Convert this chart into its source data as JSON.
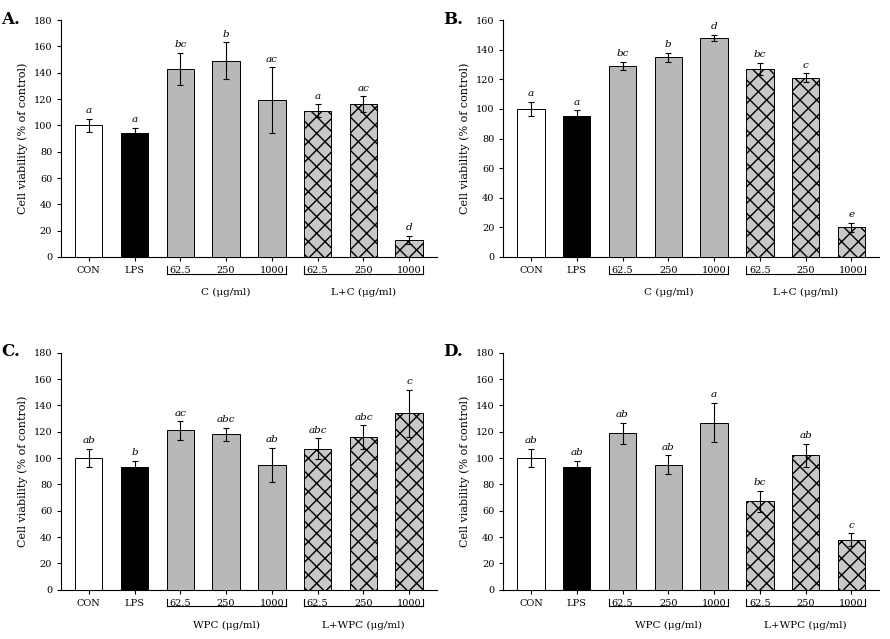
{
  "panels": [
    {
      "label": "A.",
      "ylabel": "Cell viability (% of control)",
      "ylim": [
        0,
        180
      ],
      "yticks": [
        0,
        20,
        40,
        60,
        80,
        100,
        120,
        140,
        160,
        180
      ],
      "xtick_labels": [
        "CON",
        "LPS",
        "62.5",
        "250",
        "1000",
        "62.5",
        "250",
        "1000"
      ],
      "group_labels": [
        "C (μg/ml)",
        "L+C (μg/ml)"
      ],
      "group_label_xranges": [
        [
          2,
          4
        ],
        [
          5,
          7
        ]
      ],
      "bar_values": [
        100,
        94,
        143,
        149,
        119,
        111,
        116,
        13
      ],
      "bar_errors": [
        5,
        4,
        12,
        14,
        25,
        5,
        6,
        3
      ],
      "bar_colors": [
        "white",
        "black",
        "gray",
        "gray",
        "gray",
        "hatch",
        "hatch",
        "hatch"
      ],
      "sig_labels": [
        "a",
        "a",
        "bc",
        "b",
        "ac",
        "a",
        "ac",
        "d"
      ]
    },
    {
      "label": "B.",
      "ylabel": "Cell viability (% of control)",
      "ylim": [
        0,
        160
      ],
      "yticks": [
        0,
        20,
        40,
        60,
        80,
        100,
        120,
        140,
        160
      ],
      "xtick_labels": [
        "CON",
        "LPS",
        "62.5",
        "250",
        "1000",
        "62.5",
        "250",
        "1000"
      ],
      "group_labels": [
        "C (μg/ml)",
        "L+C (μg/ml)"
      ],
      "group_label_xranges": [
        [
          2,
          4
        ],
        [
          5,
          7
        ]
      ],
      "bar_values": [
        100,
        95,
        129,
        135,
        148,
        127,
        121,
        20
      ],
      "bar_errors": [
        5,
        4,
        3,
        3,
        2,
        4,
        3,
        3
      ],
      "bar_colors": [
        "white",
        "black",
        "gray",
        "gray",
        "gray",
        "hatch",
        "hatch",
        "hatch"
      ],
      "sig_labels": [
        "a",
        "a",
        "bc",
        "b",
        "d",
        "bc",
        "c",
        "e"
      ]
    },
    {
      "label": "C.",
      "ylabel": "Cell viability (% of control)",
      "ylim": [
        0,
        180
      ],
      "yticks": [
        0,
        20,
        40,
        60,
        80,
        100,
        120,
        140,
        160,
        180
      ],
      "xtick_labels": [
        "CON",
        "LPS",
        "62.5",
        "250",
        "1000",
        "62.5",
        "250",
        "1000"
      ],
      "group_labels": [
        "WPC (μg/ml)",
        "L+WPC (μg/ml)"
      ],
      "group_label_xranges": [
        [
          2,
          4
        ],
        [
          5,
          7
        ]
      ],
      "bar_values": [
        100,
        93,
        121,
        118,
        95,
        107,
        116,
        134
      ],
      "bar_errors": [
        7,
        5,
        7,
        5,
        13,
        8,
        9,
        18
      ],
      "bar_colors": [
        "white",
        "black",
        "gray",
        "gray",
        "gray",
        "hatch",
        "hatch",
        "hatch"
      ],
      "sig_labels": [
        "ab",
        "b",
        "ac",
        "abc",
        "ab",
        "abc",
        "abc",
        "c"
      ]
    },
    {
      "label": "D.",
      "ylabel": "Cell viability (% of control)",
      "ylim": [
        0,
        180
      ],
      "yticks": [
        0,
        20,
        40,
        60,
        80,
        100,
        120,
        140,
        160,
        180
      ],
      "xtick_labels": [
        "CON",
        "LPS",
        "62.5",
        "250",
        "1000",
        "62.5",
        "250",
        "1000"
      ],
      "group_labels": [
        "WPC (μg/ml)",
        "L+WPC (μg/ml)"
      ],
      "group_label_xranges": [
        [
          2,
          4
        ],
        [
          5,
          7
        ]
      ],
      "bar_values": [
        100,
        93,
        119,
        95,
        127,
        67,
        102,
        38
      ],
      "bar_errors": [
        7,
        5,
        8,
        7,
        15,
        8,
        9,
        5
      ],
      "bar_colors": [
        "white",
        "black",
        "gray",
        "gray",
        "gray",
        "hatch",
        "hatch",
        "hatch"
      ],
      "sig_labels": [
        "ab",
        "ab",
        "ab",
        "ab",
        "a",
        "bc",
        "ab",
        "c"
      ]
    }
  ],
  "bar_width": 0.6,
  "edge_color": "black",
  "sig_fontsize": 7.5,
  "axis_label_fontsize": 8,
  "tick_fontsize": 7,
  "panel_label_fontsize": 12,
  "group_label_fontsize": 7.5,
  "gray_color": "#b8b8b8",
  "hatch_facecolor": "#c8c8c8",
  "hatch_pattern": "xx"
}
